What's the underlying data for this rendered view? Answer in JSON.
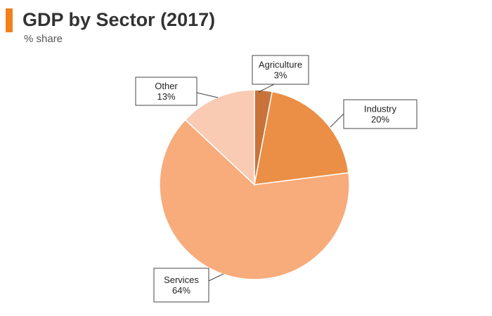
{
  "header": {
    "title": "GDP by Sector (2017)",
    "subtitle": "% share",
    "accent_color": "#f0821e"
  },
  "chart_data": {
    "type": "pie",
    "title": "GDP by Sector (2017)",
    "subtitle": "% share",
    "start_angle_deg": 0,
    "direction": "clockwise",
    "slices": [
      {
        "label": "Agriculture",
        "value": 3,
        "display": "3%",
        "color": "#c8733a"
      },
      {
        "label": "Industry",
        "value": 20,
        "display": "20%",
        "color": "#ea8f45"
      },
      {
        "label": "Services",
        "value": 64,
        "display": "64%",
        "color": "#f8ab7b"
      },
      {
        "label": "Other",
        "value": 13,
        "display": "13%",
        "color": "#f9cbb3"
      }
    ]
  }
}
